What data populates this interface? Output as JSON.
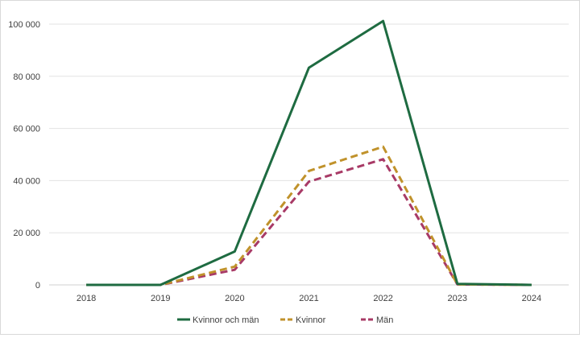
{
  "chart_data": {
    "type": "line",
    "title": "",
    "xlabel": "",
    "ylabel": "",
    "categories": [
      "2018",
      "2019",
      "2020",
      "2021",
      "2022",
      "2023",
      "2024"
    ],
    "ylim": [
      0,
      100000
    ],
    "yticks": [
      0,
      20000,
      40000,
      60000,
      80000,
      100000
    ],
    "ytick_labels": [
      "0",
      "20 000",
      "40 000",
      "60 000",
      "80 000",
      "100 000"
    ],
    "grid": "horizontal",
    "legend_position": "bottom",
    "series": [
      {
        "name": "Kvinnor och män",
        "values": [
          0,
          0,
          12800,
          83300,
          101200,
          400,
          0
        ],
        "color": "#1e6b41",
        "dash": "solid"
      },
      {
        "name": "Kvinnor",
        "values": [
          0,
          0,
          7000,
          43700,
          53000,
          200,
          0
        ],
        "color": "#c0922b",
        "dash": "dashed"
      },
      {
        "name": "Män",
        "values": [
          0,
          0,
          5800,
          39600,
          48200,
          200,
          0
        ],
        "color": "#a83a66",
        "dash": "dashed"
      }
    ]
  }
}
